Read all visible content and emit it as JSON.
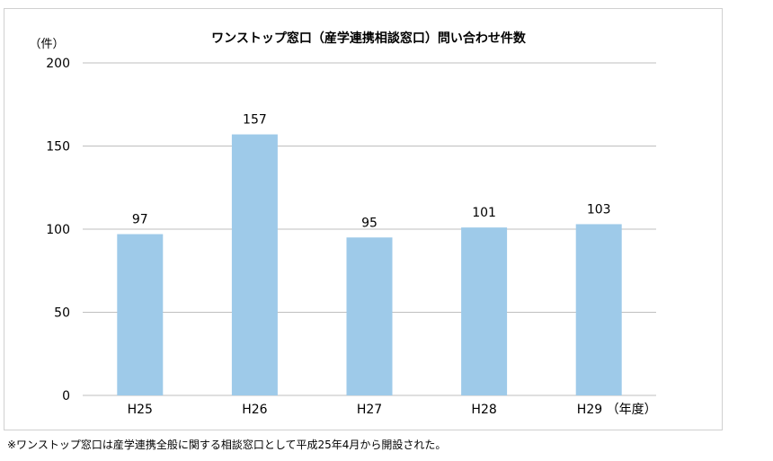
{
  "footnote": "※ワンストップ窓口は産学連携全般に関する相談窓口として平成25年4月から開設された。",
  "chart_data": {
    "type": "bar",
    "title": "ワンストップ窓口（産学連携相談窓口）問い合わせ件数",
    "ylabel": "（件）",
    "xlabel": "",
    "x_unit_suffix": "（年度）",
    "categories": [
      "H25",
      "H26",
      "H27",
      "H28",
      "H29"
    ],
    "values": [
      97,
      157,
      95,
      101,
      103
    ],
    "ylim": [
      0,
      200
    ],
    "yticks": [
      0,
      50,
      100,
      150,
      200
    ],
    "grid": true,
    "bar_color": "#9ecae9",
    "grid_color": "#bfbfbf"
  }
}
